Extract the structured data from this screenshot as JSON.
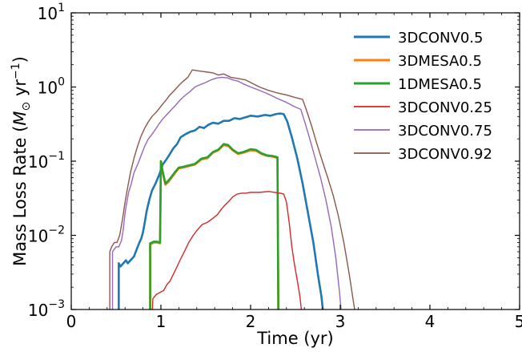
{
  "chart_data": {
    "type": "line",
    "xlabel": "Time (yr)",
    "ylabel": "Mass Loss Rate (M⊙ yr⁻¹)",
    "ylabel_parts": {
      "lead": "Mass Loss Rate (",
      "symbol": "M",
      "subscript": "⊙",
      "unit": " yr",
      "exponent": "−1",
      "close": ")"
    },
    "xlim": [
      0,
      5
    ],
    "ylim": [
      0.001,
      10
    ],
    "yscale": "log",
    "grid": false,
    "legend_position": "top-right",
    "x_ticks": [
      {
        "value": 0,
        "label": "0"
      },
      {
        "value": 1,
        "label": "1"
      },
      {
        "value": 2,
        "label": "2"
      },
      {
        "value": 3,
        "label": "3"
      },
      {
        "value": 4,
        "label": "4"
      },
      {
        "value": 5,
        "label": "5"
      }
    ],
    "y_ticks": [
      {
        "value": 0.001,
        "base": "10",
        "exp": "−3"
      },
      {
        "value": 0.01,
        "base": "10",
        "exp": "−2"
      },
      {
        "value": 0.1,
        "base": "10",
        "exp": "−1"
      },
      {
        "value": 1,
        "base": "10",
        "exp": "0"
      },
      {
        "value": 10,
        "base": "10",
        "exp": "1"
      }
    ],
    "series": [
      {
        "name": "3DCONV0.5",
        "color": "#1f77b4",
        "width": 2.6,
        "points": [
          [
            0.53,
            0.0007
          ],
          [
            0.53,
            0.0042
          ],
          [
            0.55,
            0.0038
          ],
          [
            0.58,
            0.0042
          ],
          [
            0.61,
            0.0046
          ],
          [
            0.63,
            0.0042
          ],
          [
            0.66,
            0.0046
          ],
          [
            0.7,
            0.0052
          ],
          [
            0.73,
            0.0065
          ],
          [
            0.76,
            0.008
          ],
          [
            0.78,
            0.009
          ],
          [
            0.8,
            0.011
          ],
          [
            0.82,
            0.015
          ],
          [
            0.84,
            0.021
          ],
          [
            0.87,
            0.03
          ],
          [
            0.9,
            0.04
          ],
          [
            0.94,
            0.05
          ],
          [
            0.98,
            0.065
          ],
          [
            1.02,
            0.09
          ],
          [
            1.06,
            0.105
          ],
          [
            1.1,
            0.125
          ],
          [
            1.14,
            0.15
          ],
          [
            1.18,
            0.17
          ],
          [
            1.22,
            0.21
          ],
          [
            1.27,
            0.23
          ],
          [
            1.33,
            0.25
          ],
          [
            1.38,
            0.26
          ],
          [
            1.43,
            0.29
          ],
          [
            1.48,
            0.28
          ],
          [
            1.53,
            0.31
          ],
          [
            1.58,
            0.33
          ],
          [
            1.64,
            0.32
          ],
          [
            1.7,
            0.35
          ],
          [
            1.76,
            0.35
          ],
          [
            1.82,
            0.38
          ],
          [
            1.88,
            0.37
          ],
          [
            1.94,
            0.39
          ],
          [
            2.0,
            0.41
          ],
          [
            2.08,
            0.4
          ],
          [
            2.16,
            0.42
          ],
          [
            2.22,
            0.41
          ],
          [
            2.28,
            0.43
          ],
          [
            2.33,
            0.44
          ],
          [
            2.37,
            0.43
          ],
          [
            2.41,
            0.34
          ],
          [
            2.46,
            0.21
          ],
          [
            2.52,
            0.11
          ],
          [
            2.58,
            0.05
          ],
          [
            2.64,
            0.02
          ],
          [
            2.7,
            0.008
          ],
          [
            2.75,
            0.003
          ],
          [
            2.79,
            0.0015
          ],
          [
            2.82,
            0.0007
          ]
        ]
      },
      {
        "name": "3DMESA0.5",
        "color": "#ff7f0e",
        "width": 2.6,
        "points": [
          [
            0.88,
            0.0007
          ],
          [
            0.88,
            0.0075
          ],
          [
            0.92,
            0.008
          ],
          [
            0.96,
            0.008
          ],
          [
            0.99,
            0.0078
          ],
          [
            1.0,
            0.1
          ],
          [
            1.02,
            0.07
          ],
          [
            1.05,
            0.048
          ],
          [
            1.08,
            0.052
          ],
          [
            1.12,
            0.06
          ],
          [
            1.16,
            0.07
          ],
          [
            1.2,
            0.08
          ],
          [
            1.25,
            0.082
          ],
          [
            1.3,
            0.085
          ],
          [
            1.38,
            0.09
          ],
          [
            1.45,
            0.105
          ],
          [
            1.52,
            0.11
          ],
          [
            1.58,
            0.13
          ],
          [
            1.64,
            0.14
          ],
          [
            1.7,
            0.165
          ],
          [
            1.75,
            0.16
          ],
          [
            1.8,
            0.14
          ],
          [
            1.86,
            0.125
          ],
          [
            1.92,
            0.13
          ],
          [
            2.0,
            0.14
          ],
          [
            2.06,
            0.138
          ],
          [
            2.12,
            0.125
          ],
          [
            2.18,
            0.118
          ],
          [
            2.25,
            0.115
          ],
          [
            2.3,
            0.11
          ],
          [
            2.31,
            0.0007
          ]
        ]
      },
      {
        "name": "1DMESA0.5",
        "color": "#2ca02c",
        "width": 2.6,
        "points": [
          [
            0.88,
            0.0007
          ],
          [
            0.88,
            0.0078
          ],
          [
            0.92,
            0.0082
          ],
          [
            0.96,
            0.0082
          ],
          [
            0.99,
            0.008
          ],
          [
            1.0,
            0.1
          ],
          [
            1.02,
            0.072
          ],
          [
            1.05,
            0.05
          ],
          [
            1.08,
            0.054
          ],
          [
            1.12,
            0.062
          ],
          [
            1.16,
            0.072
          ],
          [
            1.2,
            0.082
          ],
          [
            1.25,
            0.084
          ],
          [
            1.3,
            0.087
          ],
          [
            1.38,
            0.092
          ],
          [
            1.45,
            0.108
          ],
          [
            1.52,
            0.113
          ],
          [
            1.58,
            0.133
          ],
          [
            1.64,
            0.143
          ],
          [
            1.7,
            0.17
          ],
          [
            1.75,
            0.165
          ],
          [
            1.8,
            0.143
          ],
          [
            1.86,
            0.128
          ],
          [
            1.92,
            0.133
          ],
          [
            2.0,
            0.145
          ],
          [
            2.06,
            0.142
          ],
          [
            2.12,
            0.128
          ],
          [
            2.18,
            0.12
          ],
          [
            2.25,
            0.117
          ],
          [
            2.3,
            0.113
          ],
          [
            2.31,
            0.0007
          ]
        ]
      },
      {
        "name": "3DCONV0.25",
        "color": "#d62728",
        "width": 1.4,
        "points": [
          [
            0.9,
            0.0007
          ],
          [
            0.91,
            0.0014
          ],
          [
            0.95,
            0.0016
          ],
          [
            0.99,
            0.0017
          ],
          [
            1.03,
            0.0018
          ],
          [
            1.07,
            0.0022
          ],
          [
            1.1,
            0.0024
          ],
          [
            1.14,
            0.003
          ],
          [
            1.18,
            0.0038
          ],
          [
            1.22,
            0.0048
          ],
          [
            1.26,
            0.006
          ],
          [
            1.31,
            0.008
          ],
          [
            1.36,
            0.01
          ],
          [
            1.41,
            0.012
          ],
          [
            1.46,
            0.014
          ],
          [
            1.52,
            0.015
          ],
          [
            1.58,
            0.017
          ],
          [
            1.63,
            0.019
          ],
          [
            1.68,
            0.023
          ],
          [
            1.72,
            0.026
          ],
          [
            1.76,
            0.029
          ],
          [
            1.8,
            0.033
          ],
          [
            1.85,
            0.036
          ],
          [
            1.9,
            0.037
          ],
          [
            1.95,
            0.037
          ],
          [
            2.0,
            0.038
          ],
          [
            2.1,
            0.038
          ],
          [
            2.2,
            0.039
          ],
          [
            2.33,
            0.037
          ],
          [
            2.37,
            0.036
          ],
          [
            2.4,
            0.028
          ],
          [
            2.43,
            0.015
          ],
          [
            2.46,
            0.007
          ],
          [
            2.49,
            0.004
          ],
          [
            2.52,
            0.0025
          ],
          [
            2.55,
            0.0015
          ],
          [
            2.58,
            0.0007
          ]
        ]
      },
      {
        "name": "3DCONV0.75",
        "color": "#9467bd",
        "width": 1.4,
        "points": [
          [
            0.46,
            0.0007
          ],
          [
            0.46,
            0.006
          ],
          [
            0.48,
            0.0065
          ],
          [
            0.5,
            0.007
          ],
          [
            0.53,
            0.007
          ],
          [
            0.56,
            0.0085
          ],
          [
            0.58,
            0.012
          ],
          [
            0.6,
            0.02
          ],
          [
            0.62,
            0.028
          ],
          [
            0.64,
            0.038
          ],
          [
            0.67,
            0.05
          ],
          [
            0.7,
            0.07
          ],
          [
            0.74,
            0.09
          ],
          [
            0.78,
            0.12
          ],
          [
            0.82,
            0.16
          ],
          [
            0.86,
            0.2
          ],
          [
            0.9,
            0.23
          ],
          [
            0.94,
            0.27
          ],
          [
            0.98,
            0.32
          ],
          [
            1.02,
            0.37
          ],
          [
            1.07,
            0.43
          ],
          [
            1.12,
            0.5
          ],
          [
            1.17,
            0.58
          ],
          [
            1.22,
            0.68
          ],
          [
            1.27,
            0.77
          ],
          [
            1.32,
            0.86
          ],
          [
            1.38,
            1.0
          ],
          [
            1.44,
            1.08
          ],
          [
            1.5,
            1.15
          ],
          [
            1.56,
            1.25
          ],
          [
            1.62,
            1.32
          ],
          [
            1.68,
            1.35
          ],
          [
            1.74,
            1.33
          ],
          [
            1.8,
            1.25
          ],
          [
            1.86,
            1.2
          ],
          [
            1.92,
            1.1
          ],
          [
            2.0,
            1.0
          ],
          [
            2.1,
            0.9
          ],
          [
            2.2,
            0.8
          ],
          [
            2.3,
            0.7
          ],
          [
            2.4,
            0.62
          ],
          [
            2.48,
            0.55
          ],
          [
            2.56,
            0.5
          ],
          [
            2.6,
            0.35
          ],
          [
            2.66,
            0.2
          ],
          [
            2.72,
            0.11
          ],
          [
            2.78,
            0.06
          ],
          [
            2.84,
            0.03
          ],
          [
            2.9,
            0.013
          ],
          [
            2.95,
            0.005
          ],
          [
            2.99,
            0.0018
          ],
          [
            3.02,
            0.0007
          ]
        ]
      },
      {
        "name": "3DCONV0.92",
        "color": "#8c564b",
        "width": 1.4,
        "points": [
          [
            0.43,
            0.0007
          ],
          [
            0.43,
            0.006
          ],
          [
            0.45,
            0.007
          ],
          [
            0.48,
            0.008
          ],
          [
            0.51,
            0.008
          ],
          [
            0.54,
            0.01
          ],
          [
            0.57,
            0.016
          ],
          [
            0.6,
            0.028
          ],
          [
            0.63,
            0.045
          ],
          [
            0.66,
            0.07
          ],
          [
            0.7,
            0.11
          ],
          [
            0.74,
            0.16
          ],
          [
            0.78,
            0.22
          ],
          [
            0.82,
            0.28
          ],
          [
            0.86,
            0.34
          ],
          [
            0.9,
            0.4
          ],
          [
            0.95,
            0.46
          ],
          [
            1.0,
            0.55
          ],
          [
            1.05,
            0.65
          ],
          [
            1.1,
            0.78
          ],
          [
            1.15,
            0.9
          ],
          [
            1.2,
            1.05
          ],
          [
            1.25,
            1.2
          ],
          [
            1.3,
            1.35
          ],
          [
            1.35,
            1.7
          ],
          [
            1.42,
            1.65
          ],
          [
            1.5,
            1.6
          ],
          [
            1.58,
            1.55
          ],
          [
            1.64,
            1.45
          ],
          [
            1.7,
            1.5
          ],
          [
            1.78,
            1.35
          ],
          [
            1.86,
            1.3
          ],
          [
            1.94,
            1.25
          ],
          [
            2.0,
            1.15
          ],
          [
            2.1,
            1.0
          ],
          [
            2.2,
            0.9
          ],
          [
            2.3,
            0.83
          ],
          [
            2.4,
            0.78
          ],
          [
            2.5,
            0.72
          ],
          [
            2.58,
            0.68
          ],
          [
            2.62,
            0.5
          ],
          [
            2.68,
            0.3
          ],
          [
            2.74,
            0.17
          ],
          [
            2.8,
            0.1
          ],
          [
            2.86,
            0.06
          ],
          [
            2.92,
            0.035
          ],
          [
            2.98,
            0.018
          ],
          [
            3.04,
            0.008
          ],
          [
            3.1,
            0.003
          ],
          [
            3.15,
            0.0012
          ],
          [
            3.18,
            0.0007
          ]
        ]
      }
    ]
  }
}
